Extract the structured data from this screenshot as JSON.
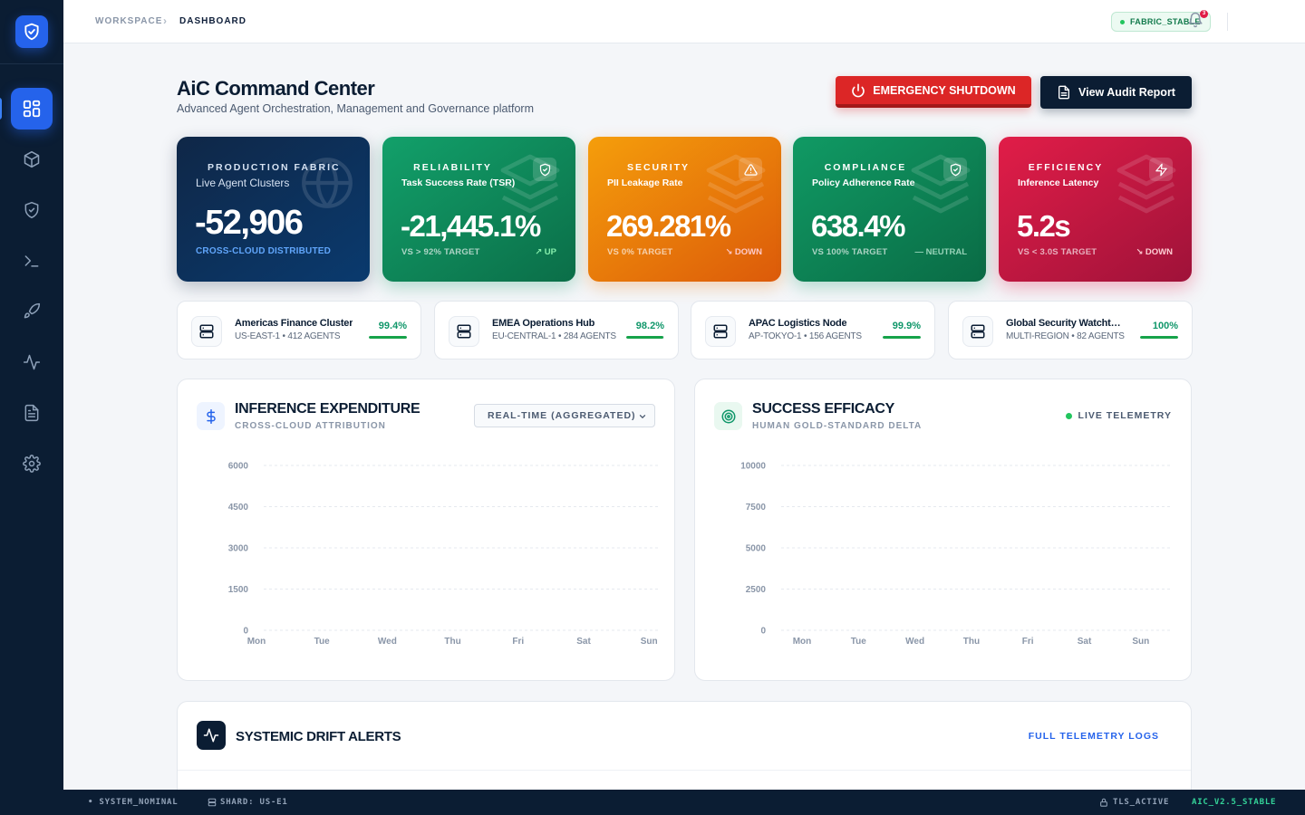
{
  "breadcrumb": {
    "workspace": "WORKSPACE",
    "current": "DASHBOARD"
  },
  "top": {
    "fabric_status": "FABRIC_STABLE",
    "notification_count": "3"
  },
  "header": {
    "title": "AiC Command Center",
    "subtitle": "Advanced Agent Orchestration, Management and Governance platform",
    "emergency_label": "EMERGENCY SHUTDOWN",
    "audit_label": "View Audit Report"
  },
  "sidebar": {
    "items": [
      {
        "icon": "dashboard-grid-icon"
      },
      {
        "icon": "cube-icon"
      },
      {
        "icon": "shield-check-icon"
      },
      {
        "icon": "terminal-icon"
      },
      {
        "icon": "rocket-icon"
      },
      {
        "icon": "activity-icon"
      },
      {
        "icon": "document-icon"
      },
      {
        "icon": "settings-icon"
      }
    ]
  },
  "kpis": {
    "production": {
      "label": "PRODUCTION FABRIC",
      "sub": "Live Agent Clusters",
      "value": "-52,906",
      "foot": "CROSS-CLOUD DISTRIBUTED"
    },
    "reliability": {
      "label": "RELIABILITY",
      "sub": "Task Success Rate (TSR)",
      "value": "-21,445.1%",
      "foot": "VS > 92% TARGET",
      "trend": "UP"
    },
    "security": {
      "label": "SECURITY",
      "sub": "PII Leakage Rate",
      "value": "269.281%",
      "foot": "VS 0% TARGET",
      "trend": "DOWN"
    },
    "compliance": {
      "label": "COMPLIANCE",
      "sub": "Policy Adherence Rate",
      "value": "638.4%",
      "foot": "VS 100% TARGET",
      "trend": "NEUTRAL"
    },
    "efficiency": {
      "label": "EFFICIENCY",
      "sub": "Inference Latency",
      "value": "5.2s",
      "foot": "VS < 3.0S TARGET",
      "trend": "DOWN"
    }
  },
  "clusters": [
    {
      "name": "Americas Finance Cluster",
      "meta": "US-EAST-1 • 412 AGENTS",
      "pct": "99.4%",
      "level": 0.994
    },
    {
      "name": "EMEA Operations Hub",
      "meta": "EU-CENTRAL-1 • 284 AGENTS",
      "pct": "98.2%",
      "level": 0.982
    },
    {
      "name": "APAC Logistics Node",
      "meta": "AP-TOKYO-1 • 156 AGENTS",
      "pct": "99.9%",
      "level": 0.999
    },
    {
      "name": "Global Security Watchtower",
      "meta": "MULTI-REGION • 82 AGENTS",
      "pct": "100%",
      "level": 1.0
    }
  ],
  "panels": {
    "expenditure": {
      "title": "INFERENCE EXPENDITURE",
      "subtitle": "CROSS-CLOUD ATTRIBUTION",
      "select": "REAL-TIME (AGGREGATED)"
    },
    "efficacy": {
      "title": "SUCCESS EFFICACY",
      "subtitle": "HUMAN GOLD-STANDARD DELTA",
      "live": "LIVE TELEMETRY"
    }
  },
  "chart_data": [
    {
      "type": "line",
      "title": "INFERENCE EXPENDITURE",
      "categories": [
        "Mon",
        "Tue",
        "Wed",
        "Thu",
        "Fri",
        "Sat",
        "Sun"
      ],
      "yticks": [
        0,
        1500,
        3000,
        4500,
        6000
      ],
      "ylim": [
        0,
        6000
      ],
      "series": [],
      "grid": true
    },
    {
      "type": "line",
      "title": "SUCCESS EFFICACY",
      "categories": [
        "Mon",
        "Tue",
        "Wed",
        "Thu",
        "Fri",
        "Sat",
        "Sun"
      ],
      "yticks": [
        0,
        2500,
        5000,
        7500,
        10000
      ],
      "ylim": [
        0,
        10000
      ],
      "series": [],
      "grid": true
    }
  ],
  "drift": {
    "title": "SYSTEMIC DRIFT ALERTS",
    "link": "FULL TELEMETRY LOGS"
  },
  "statusbar": {
    "system": "• SYSTEM_NOMINAL",
    "shard": "SHARD: US-E1",
    "tls": "TLS_ACTIVE",
    "version": "AIC_V2.5_STABLE"
  },
  "colors": {
    "accent": "#2563eb",
    "navy": "#0b1d33",
    "success": "#10976a",
    "danger": "#dc2626"
  }
}
